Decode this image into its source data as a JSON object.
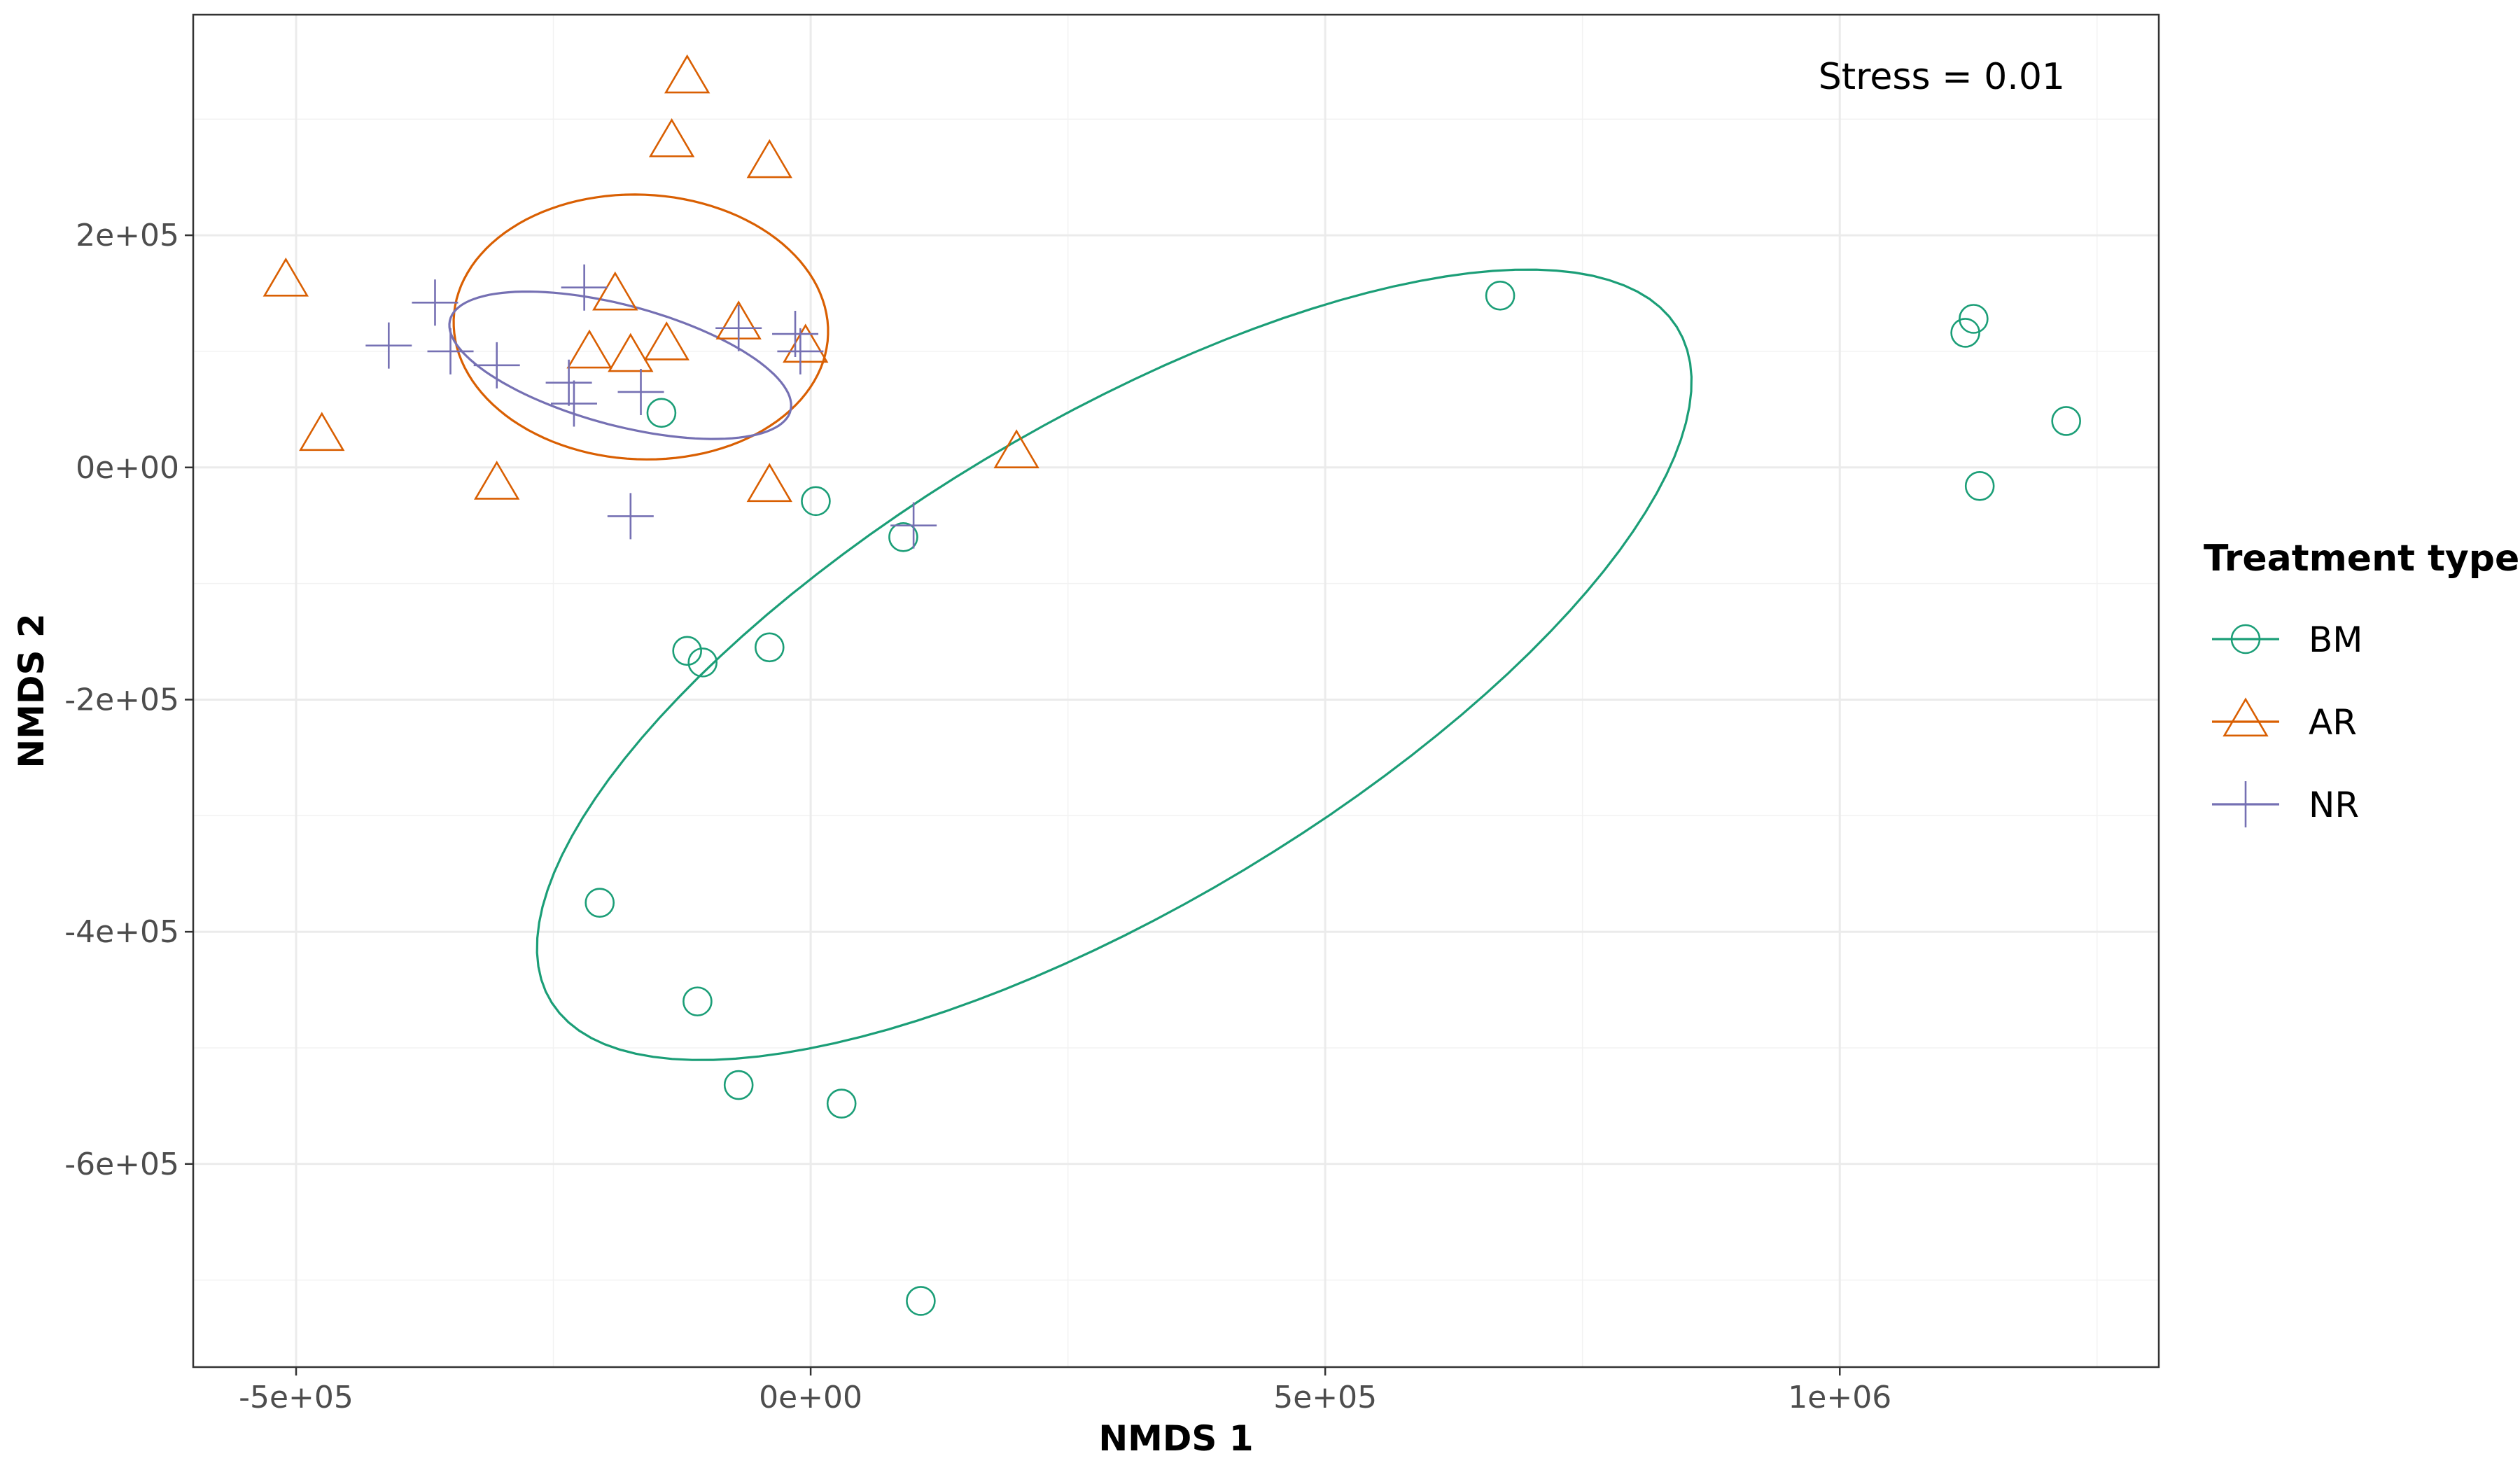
{
  "chart_data": {
    "type": "scatter",
    "xlabel": "NMDS 1",
    "ylabel": "NMDS 2",
    "xlim": [
      -600000,
      1310000
    ],
    "ylim": [
      -775000,
      390000
    ],
    "x_ticks": [
      -500000,
      0,
      500000,
      1000000
    ],
    "x_tick_labels": [
      "-5e+05",
      "0e+00",
      "5e+05",
      "1e+06"
    ],
    "y_ticks": [
      -600000,
      -400000,
      -200000,
      0,
      200000
    ],
    "y_tick_labels": [
      "-6e+05",
      "-4e+05",
      "-2e+05",
      "0e+00",
      "2e+05"
    ],
    "grid": true,
    "annotation": "Stress = 0.01",
    "legend": {
      "title": "Treatment type",
      "position": "right",
      "entries": [
        "BM",
        "AR",
        "NR"
      ]
    },
    "series": [
      {
        "name": "BM",
        "marker": "circle",
        "color": "#1b9e77",
        "points": [
          [
            670000,
            148000
          ],
          [
            1130000,
            128000
          ],
          [
            1122000,
            116000
          ],
          [
            1220000,
            40000
          ],
          [
            1136000,
            -16000
          ],
          [
            -145000,
            47000
          ],
          [
            5000,
            -29000
          ],
          [
            90000,
            -60000
          ],
          [
            -120000,
            -158000
          ],
          [
            -105000,
            -168000
          ],
          [
            -40000,
            -155000
          ],
          [
            -205000,
            -375000
          ],
          [
            -110000,
            -460000
          ],
          [
            -70000,
            -532000
          ],
          [
            30000,
            -548000
          ],
          [
            107000,
            -718000
          ]
        ],
        "ellipse": {
          "center": [
            295000,
            -170000
          ],
          "rx": 620000,
          "ry": 215000,
          "angle_deg": 27
        }
      },
      {
        "name": "AR",
        "marker": "triangle",
        "color": "#d95f02",
        "points": [
          [
            -120000,
            335000
          ],
          [
            -135000,
            280000
          ],
          [
            -40000,
            262000
          ],
          [
            -510000,
            160000
          ],
          [
            -190000,
            148000
          ],
          [
            -70000,
            123000
          ],
          [
            -140000,
            105000
          ],
          [
            -215000,
            98000
          ],
          [
            -175000,
            95000
          ],
          [
            -5000,
            103000
          ],
          [
            -475000,
            27000
          ],
          [
            -305000,
            -15000
          ],
          [
            -40000,
            -17000
          ],
          [
            200000,
            12000
          ]
        ],
        "ellipse": {
          "center": [
            -165000,
            121000
          ],
          "rx": 182000,
          "ry": 114000,
          "angle_deg": -2
        }
      },
      {
        "name": "NR",
        "marker": "cross",
        "color": "#7570b3",
        "points": [
          [
            -220000,
            155000
          ],
          [
            -365000,
            142000
          ],
          [
            -410000,
            105000
          ],
          [
            -70000,
            120000
          ],
          [
            -15000,
            115000
          ],
          [
            -10000,
            100000
          ],
          [
            -350000,
            100000
          ],
          [
            -305000,
            88000
          ],
          [
            -235000,
            73000
          ],
          [
            -230000,
            55000
          ],
          [
            -165000,
            65000
          ],
          [
            -175000,
            -42000
          ],
          [
            100000,
            -50000
          ]
        ],
        "ellipse": {
          "center": [
            -185000,
            88000
          ],
          "rx": 170000,
          "ry": 52000,
          "angle_deg": -13
        }
      }
    ]
  }
}
